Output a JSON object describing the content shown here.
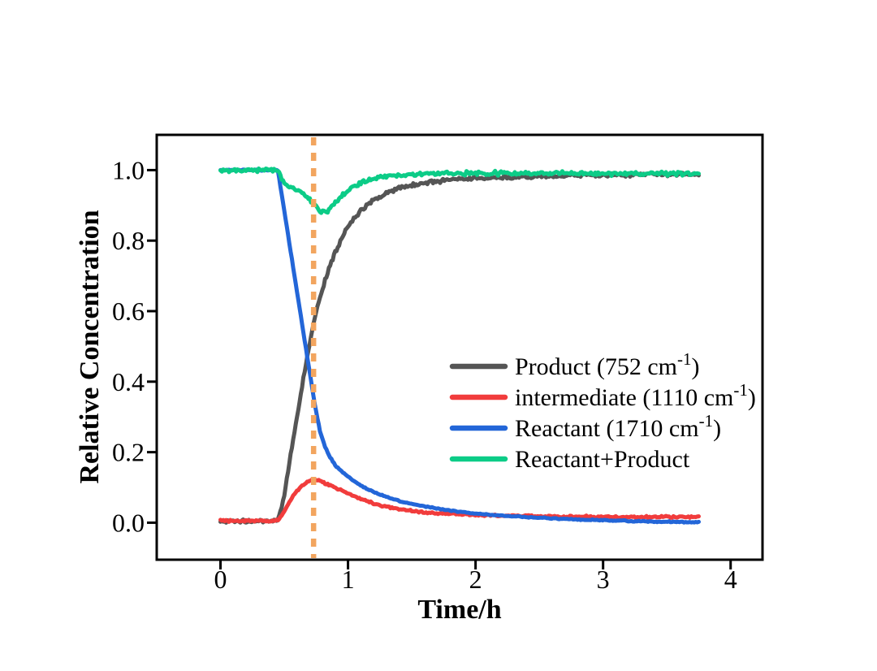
{
  "figure": {
    "background": "#ffffff",
    "axis_color": "#000000",
    "text_color": "#000000"
  },
  "chart_data": {
    "type": "line",
    "title": "",
    "xlabel": "Time/h",
    "ylabel": "Relative Concentration",
    "xlim": [
      -0.5,
      4.25
    ],
    "ylim": [
      -0.105,
      1.1
    ],
    "grid": false,
    "legend_position": "center-right-inside",
    "xticks": {
      "values": [
        0,
        1,
        2,
        3,
        4
      ],
      "labels": [
        "0",
        "1",
        "2",
        "3",
        "4"
      ]
    },
    "yticks": {
      "values": [
        0.0,
        0.2,
        0.4,
        0.6,
        0.8,
        1.0
      ],
      "labels": [
        "0.0",
        "0.2",
        "0.4",
        "0.6",
        "0.8",
        "1.0"
      ]
    },
    "series": [
      {
        "id": "product",
        "name": "Product (752 cm^-1)",
        "legend_label": {
          "pre": "Product (752 cm",
          "sup": "-1",
          "post": ")"
        },
        "color": "#555555",
        "line_width": 5,
        "noise": 0.004,
        "x": [
          0,
          0.1,
          0.2,
          0.3,
          0.4,
          0.44,
          0.47,
          0.5,
          0.55,
          0.6,
          0.65,
          0.7,
          0.75,
          0.8,
          0.85,
          0.9,
          0.95,
          1.0,
          1.1,
          1.2,
          1.3,
          1.4,
          1.5,
          1.6,
          1.7,
          1.8,
          2.0,
          2.2,
          2.4,
          2.6,
          2.8,
          3.0,
          3.2,
          3.4,
          3.6,
          3.75
        ],
        "y": [
          0.004,
          0.004,
          0.004,
          0.004,
          0.004,
          0.005,
          0.03,
          0.08,
          0.19,
          0.3,
          0.41,
          0.51,
          0.6,
          0.665,
          0.72,
          0.765,
          0.805,
          0.84,
          0.885,
          0.915,
          0.935,
          0.948,
          0.957,
          0.963,
          0.968,
          0.972,
          0.977,
          0.98,
          0.982,
          0.984,
          0.985,
          0.986,
          0.987,
          0.988,
          0.988,
          0.988
        ]
      },
      {
        "id": "intermediate",
        "name": "intermediate (1110 cm^-1)",
        "legend_label": {
          "pre": "intermediate (1110 cm",
          "sup": "-1",
          "post": ")"
        },
        "color": "#F13C3C",
        "line_width": 5,
        "noise": 0.0022,
        "x": [
          0,
          0.1,
          0.2,
          0.3,
          0.4,
          0.45,
          0.48,
          0.52,
          0.56,
          0.6,
          0.64,
          0.68,
          0.72,
          0.76,
          0.8,
          0.85,
          0.9,
          0.95,
          1.0,
          1.1,
          1.2,
          1.3,
          1.4,
          1.5,
          1.6,
          1.8,
          2.0,
          2.2,
          2.5,
          2.8,
          3.1,
          3.4,
          3.75
        ],
        "y": [
          0.005,
          0.005,
          0.005,
          0.005,
          0.005,
          0.007,
          0.02,
          0.045,
          0.07,
          0.09,
          0.105,
          0.115,
          0.12,
          0.12,
          0.116,
          0.108,
          0.1,
          0.091,
          0.083,
          0.067,
          0.055,
          0.046,
          0.039,
          0.034,
          0.03,
          0.025,
          0.022,
          0.02,
          0.018,
          0.017,
          0.016,
          0.016,
          0.017
        ]
      },
      {
        "id": "reactant",
        "name": "Reactant (1710 cm^-1)",
        "legend_label": {
          "pre": "Reactant (1710 cm",
          "sup": "-1",
          "post": ")"
        },
        "color": "#2366D8",
        "line_width": 5,
        "noise": 0.0012,
        "x": [
          0,
          0.1,
          0.2,
          0.3,
          0.4,
          0.45,
          0.5,
          0.55,
          0.6,
          0.65,
          0.7,
          0.74,
          0.78,
          0.82,
          0.86,
          0.9,
          0.95,
          1.0,
          1.1,
          1.2,
          1.3,
          1.45,
          1.6,
          1.8,
          2.0,
          2.2,
          2.5,
          2.8,
          3.1,
          3.4,
          3.75
        ],
        "y": [
          1.0,
          1.0,
          1.0,
          1.0,
          1.0,
          1.0,
          0.885,
          0.77,
          0.655,
          0.54,
          0.425,
          0.335,
          0.26,
          0.215,
          0.185,
          0.163,
          0.145,
          0.13,
          0.105,
          0.087,
          0.073,
          0.057,
          0.046,
          0.034,
          0.026,
          0.02,
          0.014,
          0.009,
          0.006,
          0.003,
          0.001
        ]
      },
      {
        "id": "reactant-plus-product",
        "name": "Reactant+Product",
        "legend_label": {
          "pre": "Reactant+Product",
          "sup": "",
          "post": ""
        },
        "color": "#0CCC87",
        "line_width": 5,
        "noise": 0.0045,
        "x": [
          0,
          0.1,
          0.2,
          0.3,
          0.4,
          0.45,
          0.5,
          0.55,
          0.6,
          0.65,
          0.7,
          0.74,
          0.79,
          0.84,
          0.88,
          0.92,
          0.96,
          1.0,
          1.1,
          1.2,
          1.3,
          1.45,
          1.6,
          1.8,
          2.0,
          2.2,
          2.5,
          2.8,
          3.1,
          3.4,
          3.75
        ],
        "y": [
          1.0,
          1.0,
          1.0,
          1.0,
          1.0,
          1.0,
          0.962,
          0.95,
          0.944,
          0.934,
          0.918,
          0.902,
          0.88,
          0.886,
          0.9,
          0.915,
          0.93,
          0.944,
          0.964,
          0.975,
          0.982,
          0.987,
          0.989,
          0.99,
          0.991,
          0.991,
          0.991,
          0.991,
          0.99,
          0.99,
          0.99
        ]
      }
    ],
    "annotations": [
      {
        "type": "vline",
        "x": 0.73,
        "color": "#F2A55F",
        "dash": [
          10,
          9
        ],
        "width": 6.5
      }
    ]
  }
}
